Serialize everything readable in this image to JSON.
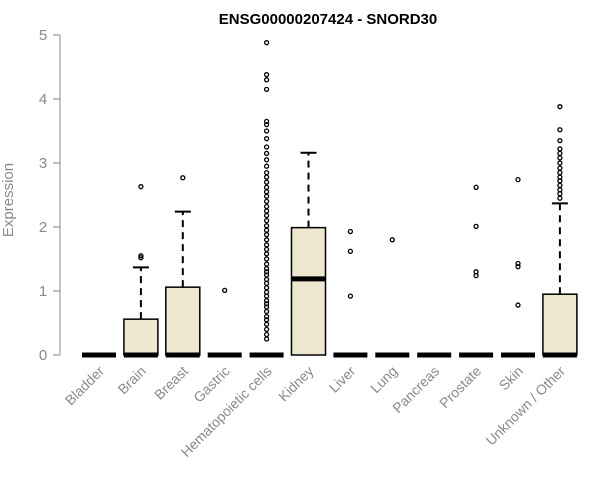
{
  "chart_data": {
    "type": "boxplot",
    "title": "ENSG00000207424 - SNORD30",
    "ylabel": "Expression",
    "xlabel": "",
    "ylim": [
      0,
      5
    ],
    "yticks": [
      0,
      1,
      2,
      3,
      4,
      5
    ],
    "grid": false,
    "box_fill": "#efe8d0",
    "categories": [
      "Bladder",
      "Brain",
      "Breast",
      "Gastric",
      "Hematopoietic cells",
      "Kidney",
      "Liver",
      "Lung",
      "Pancreas",
      "Prostate",
      "Skin",
      "Unknown / Other"
    ],
    "boxes": [
      {
        "q1": 0,
        "median": 0,
        "q3": 0,
        "whisker_low": 0,
        "whisker_high": 0,
        "outliers": []
      },
      {
        "q1": 0,
        "median": 0,
        "q3": 0.56,
        "whisker_low": 0,
        "whisker_high": 1.37,
        "outliers": [
          1.52,
          1.55,
          2.63
        ]
      },
      {
        "q1": 0,
        "median": 0,
        "q3": 1.06,
        "whisker_low": 0,
        "whisker_high": 2.24,
        "outliers": [
          2.77
        ]
      },
      {
        "q1": 0,
        "median": 0,
        "q3": 0,
        "whisker_low": 0,
        "whisker_high": 0,
        "outliers": [
          1.01
        ]
      },
      {
        "q1": 0,
        "median": 0,
        "q3": 0,
        "whisker_low": 0,
        "whisker_high": 0,
        "outliers": [
          0.25,
          0.32,
          0.4,
          0.48,
          0.55,
          0.6,
          0.68,
          0.75,
          0.8,
          0.85,
          0.92,
          0.98,
          1.05,
          1.12,
          1.18,
          1.25,
          1.3,
          1.35,
          1.42,
          1.5,
          1.58,
          1.65,
          1.72,
          1.8,
          1.88,
          1.95,
          2.02,
          2.1,
          2.18,
          2.25,
          2.32,
          2.4,
          2.48,
          2.55,
          2.62,
          2.7,
          2.78,
          2.85,
          2.95,
          3.05,
          3.15,
          3.25,
          3.38,
          3.5,
          3.6,
          3.65,
          4.15,
          4.3,
          4.38,
          4.88
        ]
      },
      {
        "q1": 0,
        "median": 1.19,
        "q3": 1.99,
        "whisker_low": 0,
        "whisker_high": 3.16,
        "outliers": []
      },
      {
        "q1": 0,
        "median": 0,
        "q3": 0,
        "whisker_low": 0,
        "whisker_high": 0,
        "outliers": [
          0.92,
          1.62,
          1.93
        ]
      },
      {
        "q1": 0,
        "median": 0,
        "q3": 0,
        "whisker_low": 0,
        "whisker_high": 0,
        "outliers": [
          1.8
        ]
      },
      {
        "q1": 0,
        "median": 0,
        "q3": 0,
        "whisker_low": 0,
        "whisker_high": 0,
        "outliers": []
      },
      {
        "q1": 0,
        "median": 0,
        "q3": 0,
        "whisker_low": 0,
        "whisker_high": 0,
        "outliers": [
          1.24,
          1.3,
          2.01,
          2.62
        ]
      },
      {
        "q1": 0,
        "median": 0,
        "q3": 0,
        "whisker_low": 0,
        "whisker_high": 0,
        "outliers": [
          0.78,
          1.38,
          1.43,
          2.74
        ]
      },
      {
        "q1": 0,
        "median": 0,
        "q3": 0.95,
        "whisker_low": 0,
        "whisker_high": 2.37,
        "outliers": [
          2.45,
          2.52,
          2.58,
          2.65,
          2.72,
          2.78,
          2.85,
          2.92,
          3.0,
          3.08,
          3.15,
          3.22,
          3.35,
          3.52,
          3.88
        ]
      }
    ]
  }
}
